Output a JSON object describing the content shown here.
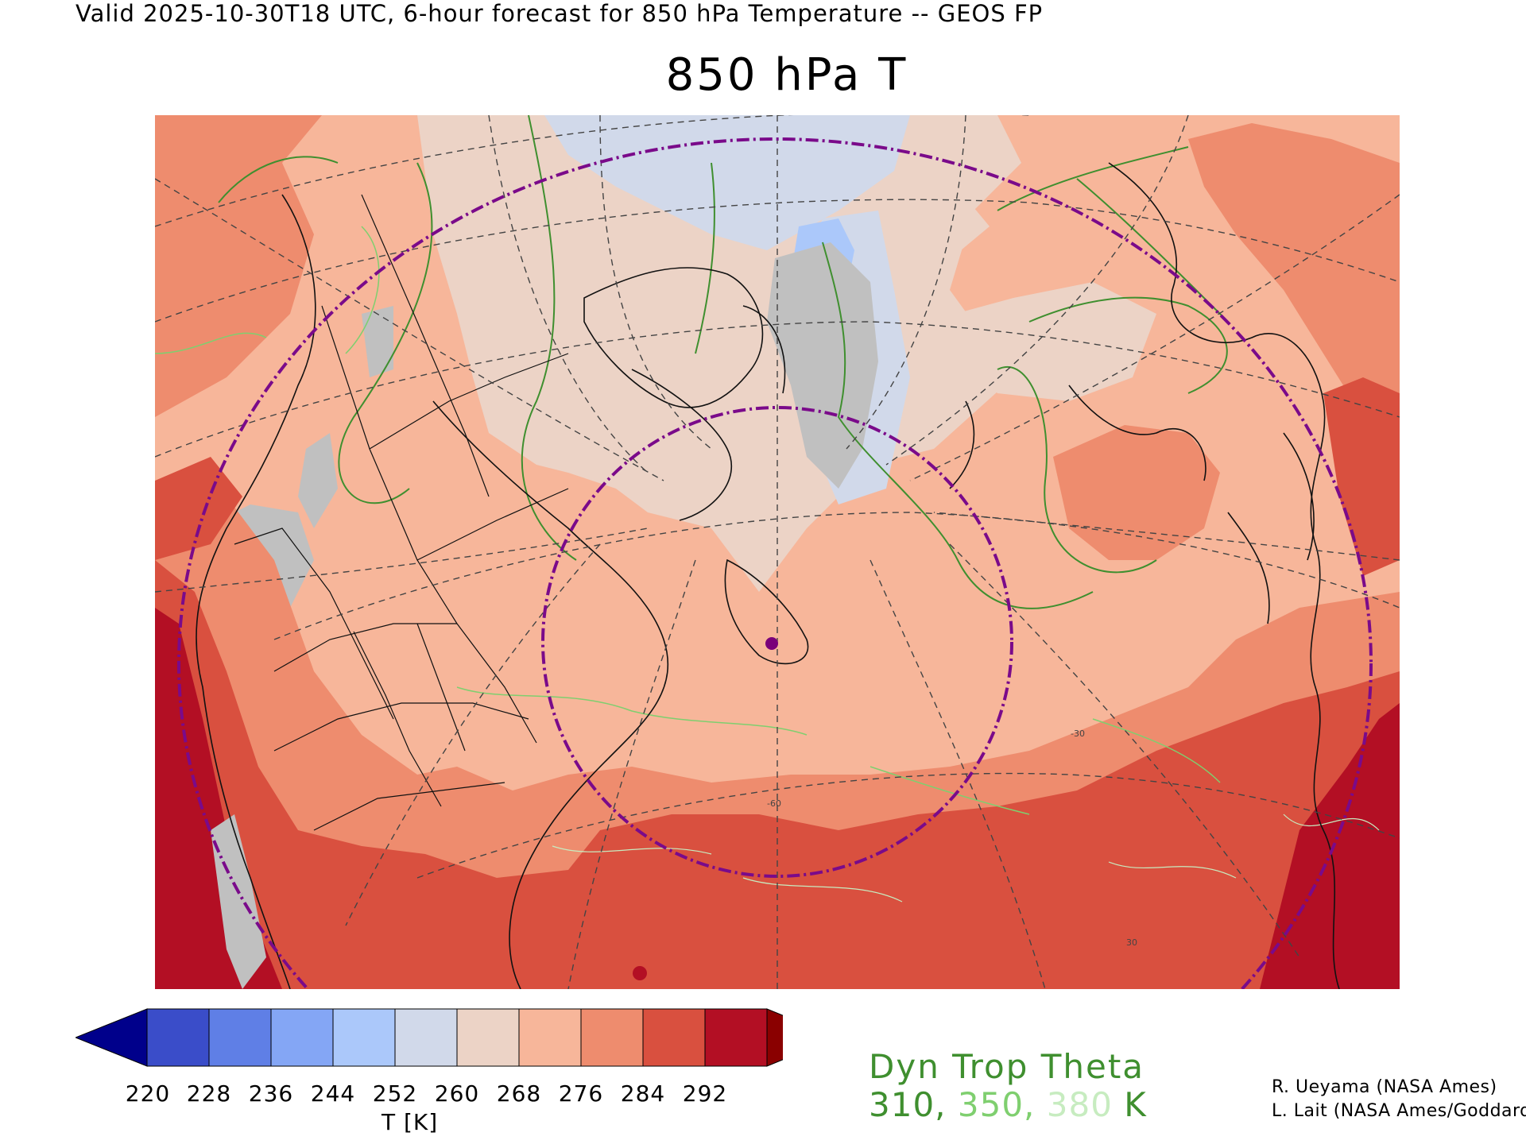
{
  "header": "Valid 2025-10-30T18 UTC, 6-hour forecast for 850 hPa Temperature -- GEOS FP",
  "title": "850 hPa T",
  "colorbar": {
    "ticks": [
      "220",
      "228",
      "236",
      "244",
      "252",
      "260",
      "268",
      "276",
      "284",
      "292"
    ],
    "colors": [
      "#00008b",
      "#3a4dc9",
      "#5f7fe6",
      "#84a6f5",
      "#abc8fa",
      "#d1d9ea",
      "#ecd3c6",
      "#f7b69a",
      "#ee8c6e",
      "#d9503f",
      "#b30f24",
      "#8a0000"
    ],
    "units": "T [K]"
  },
  "trop_legend": {
    "title": "Dyn Trop Theta",
    "values": [
      {
        "text": "310,",
        "color": "#3f8f2f"
      },
      {
        "text": "350,",
        "color": "#7fcf6f"
      },
      {
        "text": "380",
        "color": "#c7ecc0"
      },
      {
        "text": "K",
        "color": "#3f8f2f"
      }
    ]
  },
  "credits": {
    "line1": "R. Ueyama (NASA Ames)",
    "line2": "L. Lait (NASA Ames/Goddard)"
  },
  "map": {
    "grid_labels": [
      "-60",
      "-30",
      "30"
    ],
    "marker_color": "#7a007a",
    "circle_color": "#7a0a8a"
  }
}
